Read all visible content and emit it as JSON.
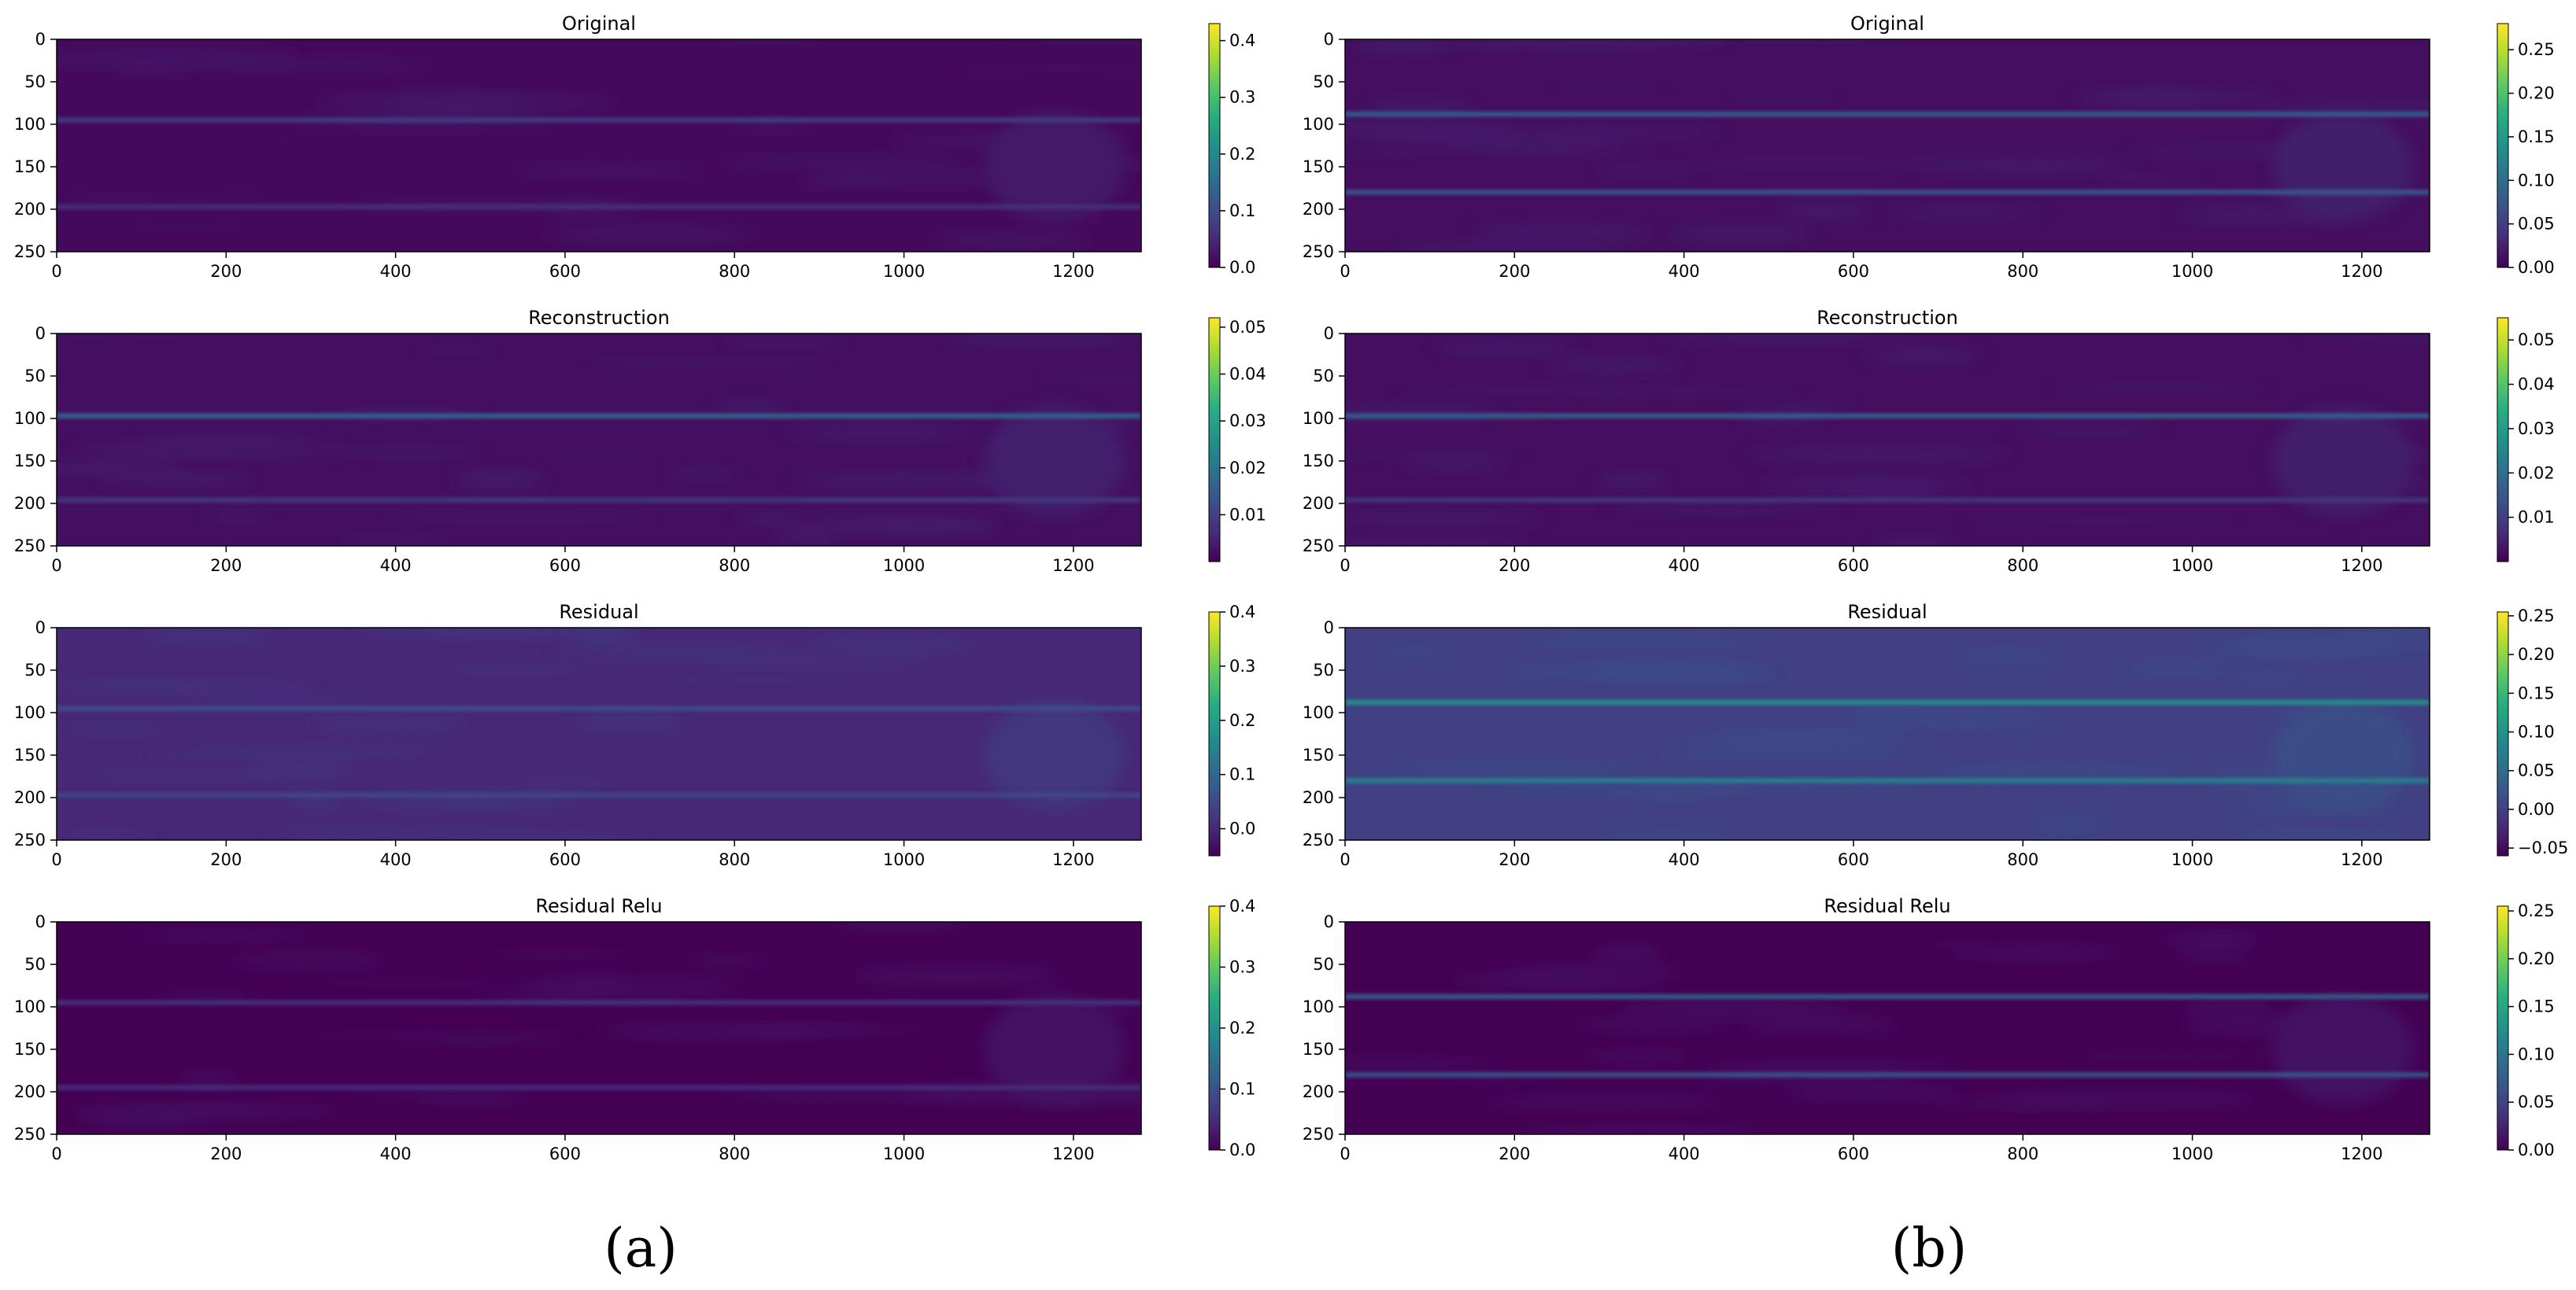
{
  "chart_data": [
    {
      "type": "heatmap",
      "panel": "a",
      "title": "Original",
      "xlim": [
        0,
        1280
      ],
      "ylim": [
        250,
        0
      ],
      "xticks": [
        0,
        200,
        400,
        600,
        800,
        1000,
        1200
      ],
      "yticks": [
        0,
        50,
        100,
        150,
        200,
        250
      ],
      "colorbar": {
        "min": 0.0,
        "max": 0.43,
        "ticks": [
          "0.0",
          "0.1",
          "0.2",
          "0.3",
          "0.4"
        ]
      },
      "bands": [
        {
          "y": 95,
          "value": 0.08
        },
        {
          "y": 197,
          "value": 0.06
        }
      ],
      "background_value": 0.01
    },
    {
      "type": "heatmap",
      "panel": "a",
      "title": "Reconstruction",
      "xlim": [
        0,
        1280
      ],
      "ylim": [
        250,
        0
      ],
      "xticks": [
        0,
        200,
        400,
        600,
        800,
        1000,
        1200
      ],
      "yticks": [
        0,
        50,
        100,
        150,
        200,
        250
      ],
      "colorbar": {
        "min": 0.0,
        "max": 0.052,
        "ticks": [
          "0.01",
          "0.02",
          "0.03",
          "0.04",
          "0.05"
        ]
      },
      "bands": [
        {
          "y": 97,
          "value": 0.018
        },
        {
          "y": 196,
          "value": 0.009
        }
      ],
      "background_value": 0.002
    },
    {
      "type": "heatmap",
      "panel": "a",
      "title": "Residual",
      "xlim": [
        0,
        1280
      ],
      "ylim": [
        250,
        0
      ],
      "xticks": [
        0,
        200,
        400,
        600,
        800,
        1000,
        1200
      ],
      "yticks": [
        0,
        50,
        100,
        150,
        200,
        250
      ],
      "colorbar": {
        "min": -0.05,
        "max": 0.4,
        "ticks": [
          "0.0",
          "0.1",
          "0.2",
          "0.3",
          "0.4"
        ]
      },
      "bands": [
        {
          "y": 95,
          "value": 0.06
        },
        {
          "y": 197,
          "value": 0.05
        }
      ],
      "background_value": 0.0
    },
    {
      "type": "heatmap",
      "panel": "a",
      "title": "Residual Relu",
      "xlim": [
        0,
        1280
      ],
      "ylim": [
        250,
        0
      ],
      "xticks": [
        0,
        200,
        400,
        600,
        800,
        1000,
        1200
      ],
      "yticks": [
        0,
        50,
        100,
        150,
        200,
        250
      ],
      "colorbar": {
        "min": 0.0,
        "max": 0.4,
        "ticks": [
          "0.0",
          "0.1",
          "0.2",
          "0.3",
          "0.4"
        ]
      },
      "bands": [
        {
          "y": 95,
          "value": 0.06
        },
        {
          "y": 195,
          "value": 0.05
        }
      ],
      "background_value": 0.0
    },
    {
      "type": "heatmap",
      "panel": "b",
      "title": "Original",
      "xlim": [
        0,
        1280
      ],
      "ylim": [
        250,
        0
      ],
      "xticks": [
        0,
        200,
        400,
        600,
        800,
        1000,
        1200
      ],
      "yticks": [
        0,
        50,
        100,
        150,
        200,
        250
      ],
      "colorbar": {
        "min": 0.0,
        "max": 0.28,
        "ticks": [
          "0.00",
          "0.05",
          "0.10",
          "0.15",
          "0.20",
          "0.25"
        ]
      },
      "bands": [
        {
          "y": 88,
          "value": 0.09
        },
        {
          "y": 180,
          "value": 0.08
        }
      ],
      "background_value": 0.01
    },
    {
      "type": "heatmap",
      "panel": "b",
      "title": "Reconstruction",
      "xlim": [
        0,
        1280
      ],
      "ylim": [
        250,
        0
      ],
      "xticks": [
        0,
        200,
        400,
        600,
        800,
        1000,
        1200
      ],
      "yticks": [
        0,
        50,
        100,
        150,
        200,
        250
      ],
      "colorbar": {
        "min": 0.0,
        "max": 0.055,
        "ticks": [
          "0.01",
          "0.02",
          "0.03",
          "0.04",
          "0.05"
        ]
      },
      "bands": [
        {
          "y": 97,
          "value": 0.018
        },
        {
          "y": 196,
          "value": 0.009
        }
      ],
      "background_value": 0.002
    },
    {
      "type": "heatmap",
      "panel": "b",
      "title": "Residual",
      "xlim": [
        0,
        1280
      ],
      "ylim": [
        250,
        0
      ],
      "xticks": [
        0,
        200,
        400,
        600,
        800,
        1000,
        1200
      ],
      "yticks": [
        0,
        50,
        100,
        150,
        200,
        250
      ],
      "colorbar": {
        "min": -0.06,
        "max": 0.255,
        "ticks": [
          "−0.05",
          "0.00",
          "0.05",
          "0.10",
          "0.15",
          "0.20",
          "0.25"
        ]
      },
      "bands": [
        {
          "y": 88,
          "value": 0.1
        },
        {
          "y": 180,
          "value": 0.08
        }
      ],
      "background_value": 0.0
    },
    {
      "type": "heatmap",
      "panel": "b",
      "title": "Residual Relu",
      "xlim": [
        0,
        1280
      ],
      "ylim": [
        250,
        0
      ],
      "xticks": [
        0,
        200,
        400,
        600,
        800,
        1000,
        1200
      ],
      "yticks": [
        0,
        50,
        100,
        150,
        200,
        250
      ],
      "colorbar": {
        "min": 0.0,
        "max": 0.255,
        "ticks": [
          "0.00",
          "0.05",
          "0.10",
          "0.15",
          "0.20",
          "0.25"
        ]
      },
      "bands": [
        {
          "y": 88,
          "value": 0.08
        },
        {
          "y": 180,
          "value": 0.07
        }
      ],
      "background_value": 0.0
    }
  ],
  "captions": {
    "a": "(a)",
    "b": "(b)"
  },
  "colormap": "viridis"
}
